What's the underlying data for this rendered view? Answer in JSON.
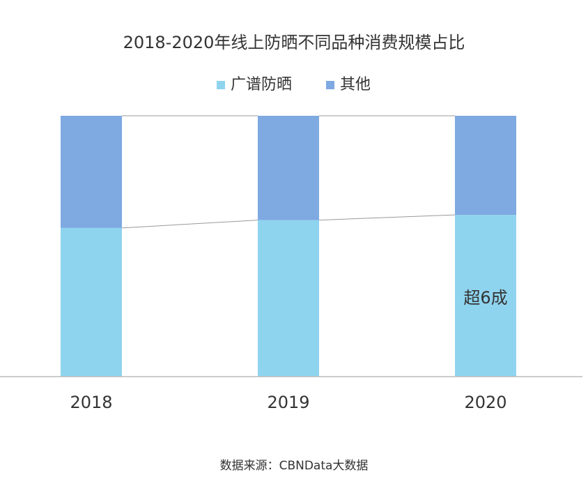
{
  "chart_data": {
    "type": "stacked_bar_percent",
    "title": "2018-2020年线上防晒不同品种消费规模占比",
    "categories": [
      "2018",
      "2019",
      "2020"
    ],
    "series": [
      {
        "name": "广谱防晒",
        "color": "#8fd4ef",
        "values": [
          57,
          60,
          62
        ]
      },
      {
        "name": "其他",
        "color": "#7ea9e1",
        "values": [
          43,
          40,
          38
        ]
      }
    ],
    "ylim": [
      0,
      100
    ],
    "annotation": "超6成",
    "source": "数据来源：CBNData大数据"
  }
}
